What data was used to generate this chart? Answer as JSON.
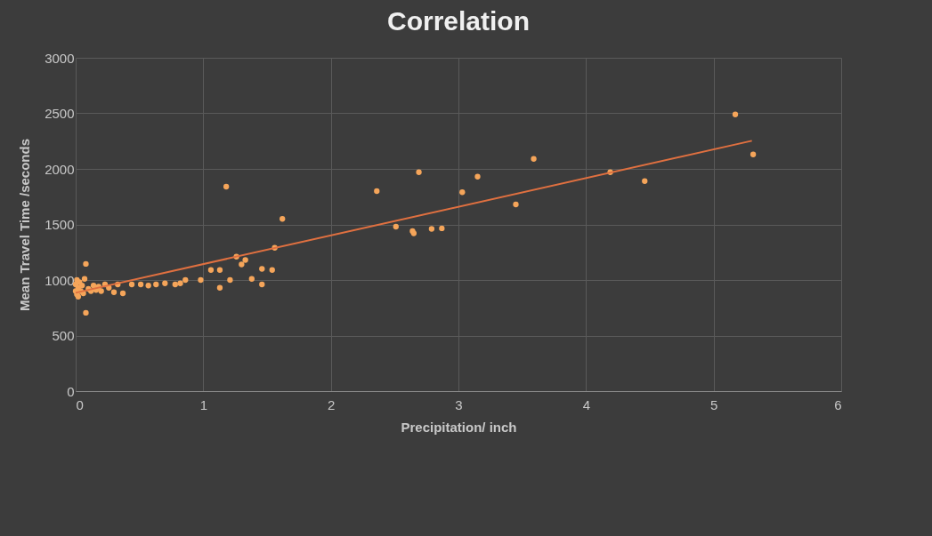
{
  "chart_data": {
    "type": "scatter",
    "title": "Correlation",
    "xlabel": "Precipitation/  inch",
    "ylabel": "Mean Travel Time /seconds",
    "xlim": [
      0,
      6
    ],
    "xticks": [
      0,
      1,
      2,
      3,
      4,
      5,
      6
    ],
    "ylim": [
      0,
      3000
    ],
    "yticks": [
      0,
      500,
      1000,
      1500,
      2000,
      2500,
      3000
    ],
    "grid": true,
    "series": [
      {
        "marker": "circle",
        "color": "#f5a55a",
        "x": [
          0,
          0,
          0.01,
          0.01,
          0.02,
          0.02,
          0.03,
          0.04,
          0.05,
          0.06,
          0.07,
          0.08,
          0.08,
          0.1,
          0.12,
          0.14,
          0.16,
          0.18,
          0.2,
          0.23,
          0.26,
          0.3,
          0.33,
          0.37,
          0.44,
          0.51,
          0.57,
          0.63,
          0.7,
          0.78,
          0.82,
          0.86,
          0.98,
          1.06,
          1.13,
          1.13,
          1.18,
          1.21,
          1.26,
          1.3,
          1.33,
          1.38,
          1.46,
          1.46,
          1.54,
          1.56,
          1.62,
          2.36,
          2.51,
          2.64,
          2.65,
          2.69,
          2.79,
          2.87,
          3.03,
          3.15,
          3.45,
          3.59,
          4.19,
          4.46,
          5.17,
          5.31
        ],
        "values": [
          900,
          960,
          870,
          1000,
          930,
          850,
          980,
          900,
          950,
          880,
          1010,
          1145,
          705,
          920,
          900,
          950,
          910,
          940,
          900,
          960,
          930,
          890,
          960,
          880,
          960,
          960,
          950,
          960,
          970,
          960,
          970,
          1000,
          1000,
          1090,
          1090,
          930,
          1840,
          1000,
          1210,
          1140,
          1180,
          1010,
          1100,
          960,
          1090,
          1290,
          1550,
          1800,
          1480,
          1440,
          1420,
          1970,
          1460,
          1465,
          1790,
          1930,
          1680,
          2090,
          1970,
          1890,
          2490,
          2130
        ]
      },
      {
        "type": "line",
        "color": "#e07040",
        "x": [
          0,
          5.3
        ],
        "values": [
          885,
          2253
        ]
      }
    ]
  }
}
